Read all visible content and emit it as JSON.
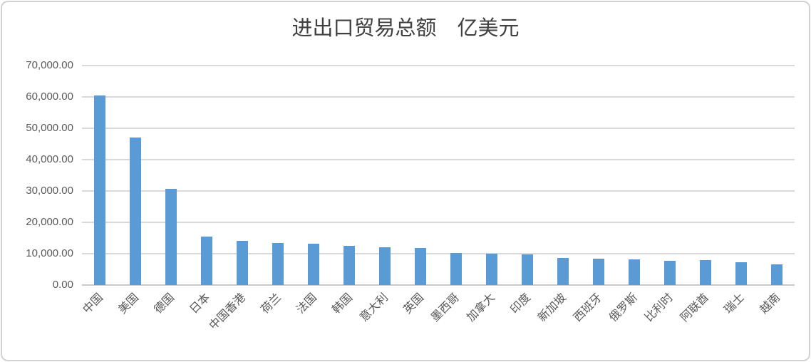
{
  "frame": {
    "background": "#ffffff",
    "border_color": "#d2d2d2"
  },
  "chart_data": {
    "type": "bar",
    "title": "进出口贸易总额　亿美元",
    "xlabel": "",
    "ylabel": "",
    "unit": "亿美元",
    "legend": "none",
    "grid": true,
    "ylim": [
      0,
      70000
    ],
    "y_tick_interval": 10000,
    "y_tick_labels": [
      "0.00",
      "10,000.00",
      "20,000.00",
      "30,000.00",
      "40,000.00",
      "50,000.00",
      "60,000.00",
      "70,000.00"
    ],
    "categories": [
      "中国",
      "美国",
      "德国",
      "日本",
      "中国香港",
      "荷兰",
      "法国",
      "韩国",
      "意大利",
      "英国",
      "墨西哥",
      "加拿大",
      "印度",
      "新加坡",
      "西班牙",
      "俄罗斯",
      "比利时",
      "阿联酋",
      "瑞士",
      "越南"
    ],
    "values": [
      60500,
      47100,
      30650,
      15400,
      14000,
      13400,
      13100,
      12600,
      12100,
      11850,
      10200,
      10100,
      9700,
      8700,
      8350,
      8200,
      7800,
      7850,
      7250,
      6700
    ],
    "bar_color": "#5b9bd5",
    "gridline_color": "#d9d9d9",
    "axis_line_color": "#c9c9c9",
    "label_color": "#595959",
    "title_color": "#404040"
  }
}
